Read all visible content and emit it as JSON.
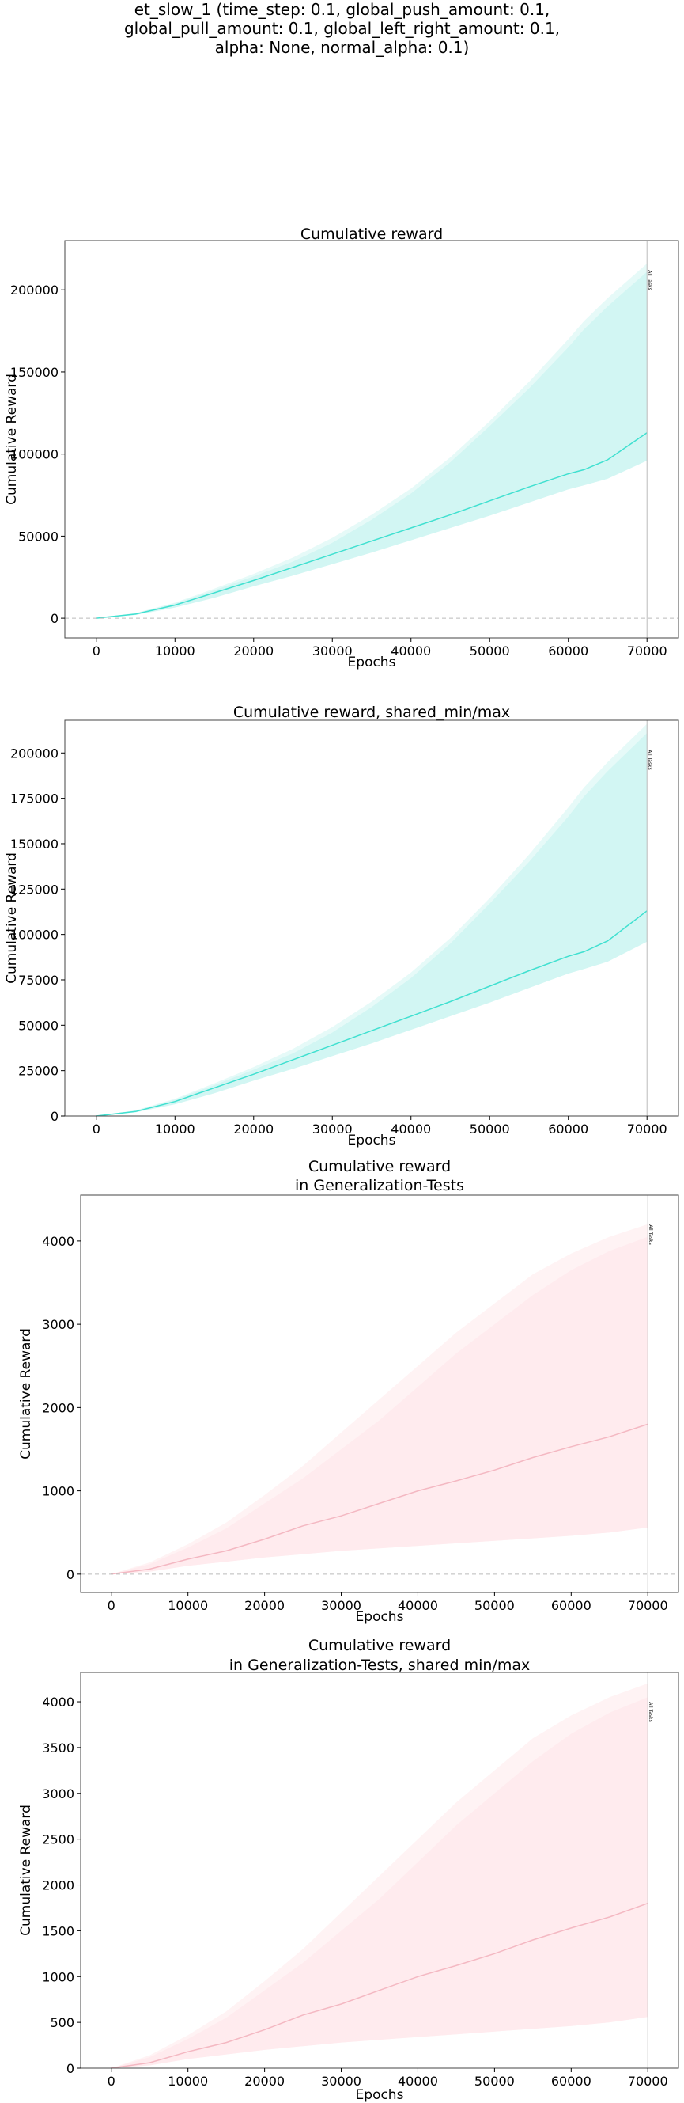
{
  "figure": {
    "title_lines": [
      "et_slow_1 (time_step: 0.1, global_push_amount: 0.1,",
      "global_pull_amount: 0.1, global_left_right_amount: 0.1,",
      "alpha: None, normal_alpha: 0.1)"
    ]
  },
  "colors": {
    "train_line": "#40e0d0",
    "train_band": "#d2f6f3",
    "train_band_outer": "#e6faf8",
    "test_line": "#f4b8c2",
    "test_band": "#ffebee",
    "test_band_outer": "#fff3f4",
    "marker_line": "#bbbbbb",
    "zero_line": "#bbbbbb"
  },
  "chart_data": [
    {
      "type": "line",
      "title_lines": [
        "Cumulative reward"
      ],
      "xlabel": "Epochs",
      "ylabel": "Cumulative Reward",
      "xlim": [
        -4000,
        74000
      ],
      "ylim": [
        -12000,
        230000
      ],
      "xticks": [
        0,
        10000,
        20000,
        30000,
        40000,
        50000,
        60000,
        70000
      ],
      "yticks": [
        0,
        50000,
        100000,
        150000,
        200000
      ],
      "zero_line": true,
      "marker": {
        "x": 70000,
        "label": "All Tasks"
      },
      "series": [
        {
          "x": [
            0,
            5000,
            10000,
            15000,
            20000,
            25000,
            30000,
            35000,
            40000,
            45000,
            50000,
            55000,
            60000,
            62000,
            65000,
            70000
          ],
          "mean": [
            0,
            2500,
            8000,
            15500,
            23000,
            31000,
            39000,
            47000,
            55000,
            63000,
            71500,
            80000,
            88000,
            90500,
            96500,
            113000
          ],
          "lower": [
            0,
            2000,
            6500,
            12500,
            19500,
            26000,
            33000,
            40000,
            47500,
            55000,
            62500,
            70500,
            78500,
            81000,
            85000,
            96000
          ],
          "upper": [
            0,
            3000,
            9000,
            17000,
            25500,
            34500,
            46000,
            60000,
            76000,
            95000,
            117000,
            140000,
            165000,
            176000,
            190000,
            211000
          ],
          "outer_upper": [
            0,
            3200,
            9500,
            18000,
            27000,
            37000,
            49000,
            63000,
            79000,
            98000,
            120000,
            144000,
            170000,
            181000,
            195000,
            216000
          ]
        }
      ]
    },
    {
      "type": "line",
      "title_lines": [
        "Cumulative reward, shared_min/max"
      ],
      "xlabel": "Epochs",
      "ylabel": "Cumulative Reward",
      "xlim": [
        -4000,
        74000
      ],
      "ylim": [
        0,
        218000
      ],
      "xticks": [
        0,
        10000,
        20000,
        30000,
        40000,
        50000,
        60000,
        70000
      ],
      "yticks": [
        0,
        25000,
        50000,
        75000,
        100000,
        125000,
        150000,
        175000,
        200000
      ],
      "zero_line": false,
      "marker": {
        "x": 70000,
        "label": "All Tasks"
      },
      "series": [
        {
          "x": [
            0,
            5000,
            10000,
            15000,
            20000,
            25000,
            30000,
            35000,
            40000,
            45000,
            50000,
            55000,
            60000,
            62000,
            65000,
            70000
          ],
          "mean": [
            0,
            2500,
            8000,
            15500,
            23000,
            31000,
            39000,
            47000,
            55000,
            63000,
            71500,
            80000,
            88000,
            90500,
            96500,
            113000
          ],
          "lower": [
            0,
            2000,
            6500,
            12500,
            19500,
            26000,
            33000,
            40000,
            47500,
            55000,
            62500,
            70500,
            78500,
            81000,
            85000,
            96000
          ],
          "upper": [
            0,
            3000,
            9000,
            17000,
            25500,
            34500,
            46000,
            60000,
            76000,
            95000,
            117000,
            140000,
            165000,
            176000,
            190000,
            211000
          ],
          "outer_upper": [
            0,
            3200,
            9500,
            18000,
            27000,
            37000,
            49000,
            63000,
            79000,
            98000,
            120000,
            144000,
            170000,
            181000,
            195000,
            216000
          ]
        }
      ]
    },
    {
      "type": "line",
      "title_lines": [
        "Cumulative reward",
        "in Generalization-Tests"
      ],
      "xlabel": "Epochs",
      "ylabel": "Cumulative Reward",
      "xlim": [
        -4000,
        74000
      ],
      "ylim": [
        -220,
        4550
      ],
      "xticks": [
        0,
        10000,
        20000,
        30000,
        40000,
        50000,
        60000,
        70000
      ],
      "yticks": [
        0,
        1000,
        2000,
        3000,
        4000
      ],
      "zero_line": true,
      "marker": {
        "x": 70000,
        "label": "All Tasks"
      },
      "series": [
        {
          "x": [
            0,
            5000,
            10000,
            15000,
            20000,
            25000,
            30000,
            35000,
            40000,
            45000,
            50000,
            55000,
            60000,
            65000,
            70000
          ],
          "mean": [
            0,
            60,
            180,
            280,
            420,
            580,
            700,
            850,
            1000,
            1120,
            1250,
            1400,
            1530,
            1650,
            1800
          ],
          "lower": [
            0,
            30,
            100,
            150,
            200,
            240,
            280,
            310,
            340,
            370,
            400,
            430,
            460,
            500,
            560
          ],
          "upper": [
            0,
            120,
            320,
            550,
            850,
            1150,
            1500,
            1850,
            2250,
            2650,
            3000,
            3350,
            3650,
            3880,
            4050
          ],
          "outer_upper": [
            0,
            140,
            360,
            620,
            950,
            1300,
            1700,
            2100,
            2500,
            2900,
            3250,
            3600,
            3850,
            4050,
            4200
          ]
        }
      ]
    },
    {
      "type": "line",
      "title_lines": [
        "Cumulative reward",
        "in Generalization-Tests, shared min/max"
      ],
      "xlabel": "Epochs",
      "ylabel": "Cumulative Reward",
      "xlim": [
        -4000,
        74000
      ],
      "ylim": [
        0,
        4320
      ],
      "xticks": [
        0,
        10000,
        20000,
        30000,
        40000,
        50000,
        60000,
        70000
      ],
      "yticks": [
        0,
        500,
        1000,
        1500,
        2000,
        2500,
        3000,
        3500,
        4000
      ],
      "zero_line": false,
      "marker": {
        "x": 70000,
        "label": "All Tasks"
      },
      "series": [
        {
          "x": [
            0,
            5000,
            10000,
            15000,
            20000,
            25000,
            30000,
            35000,
            40000,
            45000,
            50000,
            55000,
            60000,
            65000,
            70000
          ],
          "mean": [
            0,
            60,
            180,
            280,
            420,
            580,
            700,
            850,
            1000,
            1120,
            1250,
            1400,
            1530,
            1650,
            1800
          ],
          "lower": [
            0,
            30,
            100,
            150,
            200,
            240,
            280,
            310,
            340,
            370,
            400,
            430,
            460,
            500,
            560
          ],
          "upper": [
            0,
            120,
            320,
            550,
            850,
            1150,
            1500,
            1850,
            2250,
            2650,
            3000,
            3350,
            3650,
            3880,
            4050
          ],
          "outer_upper": [
            0,
            140,
            360,
            620,
            950,
            1300,
            1700,
            2100,
            2500,
            2900,
            3250,
            3600,
            3850,
            4050,
            4200
          ]
        }
      ]
    }
  ]
}
